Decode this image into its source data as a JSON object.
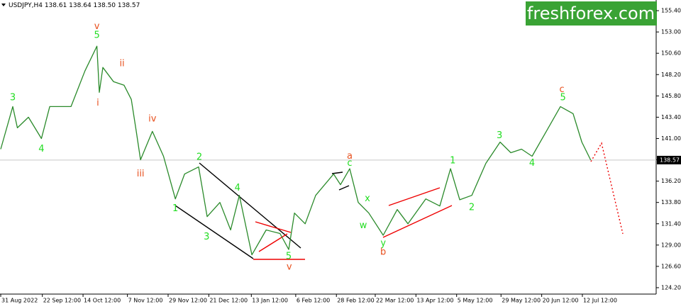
{
  "chart_data": {
    "type": "line",
    "title": "USDJPY,H4  138.61 138.64 138.50 138.57",
    "brand": "freshforex.com",
    "color": "#2a8a2a",
    "x": [
      0,
      6.5,
      9,
      15,
      22,
      26.5,
      38,
      45.5,
      52,
      53.3,
      55.2,
      61,
      66.7,
      70.6,
      73.3,
      75.6,
      82,
      88,
      94.4,
      99.4,
      107,
      111.6,
      118.5,
      124.3,
      129,
      135.8,
      143.5,
      151,
      155.7,
      158.8,
      164.6,
      170.3,
      180,
      183.7,
      188.7,
      193.3,
      199,
      206.8,
      214.4,
      220.2,
      229.8,
      237.4,
      243.2,
      248.2,
      254.7,
      262.3,
      270,
      275.8,
      281.6,
      287.3,
      295,
      302.6,
      309.5,
      314.2,
      319
    ],
    "values": [
      139.8,
      144.6,
      142.2,
      143.4,
      141.0,
      144.6,
      144.6,
      148.6,
      151.4,
      146.2,
      149.0,
      147.4,
      147.0,
      145.4,
      141.8,
      138.6,
      141.8,
      139.0,
      134.2,
      137.0,
      137.8,
      132.2,
      133.8,
      130.7,
      134.6,
      127.9,
      130.7,
      130.3,
      128.5,
      132.6,
      131.4,
      134.6,
      137.0,
      135.8,
      137.6,
      133.8,
      132.6,
      130.1,
      133.0,
      131.4,
      134.2,
      133.4,
      137.6,
      134.1,
      134.6,
      138.2,
      140.6,
      139.4,
      139.8,
      139.0,
      141.8,
      144.6,
      143.8,
      140.6,
      138.57
    ],
    "xlim": [
      -0.4,
      354.4
    ],
    "ylim": [
      123.08,
      156.6
    ],
    "xticks": [
      {
        "value": 0,
        "label": "31 Aug 2022"
      },
      {
        "value": 22.5,
        "label": "22 Sep 12:00"
      },
      {
        "value": 44.5,
        "label": "14 Oct 12:00"
      },
      {
        "value": 68.5,
        "label": "7 Nov 12:00"
      },
      {
        "value": 90.5,
        "label": "29 Nov 12:00"
      },
      {
        "value": 112.5,
        "label": "21 Dec 12:00"
      },
      {
        "value": 135.5,
        "label": "13 Jan 12:00"
      },
      {
        "value": 159.5,
        "label": "6 Feb 12:00"
      },
      {
        "value": 181.5,
        "label": "28 Feb 12:00"
      },
      {
        "value": 202.5,
        "label": "22 Mar 12:00"
      },
      {
        "value": 224.5,
        "label": "13 Apr 12:00"
      },
      {
        "value": 246.5,
        "label": "5 May 12:00"
      },
      {
        "value": 270.5,
        "label": "29 May 12:00"
      },
      {
        "value": 292.5,
        "label": "20 Jun 12:00"
      },
      {
        "value": 314.5,
        "label": "12 Jul 12:00"
      }
    ],
    "yticks": [
      {
        "value": 155.4,
        "label": "155.40"
      },
      {
        "value": 153,
        "label": "153.00"
      },
      {
        "value": 150.6,
        "label": "150.60"
      },
      {
        "value": 148.2,
        "label": "148.20"
      },
      {
        "value": 145.8,
        "label": "145.80"
      },
      {
        "value": 143.4,
        "label": "143.40"
      },
      {
        "value": 141,
        "label": "141.00"
      },
      {
        "value": 138.6,
        "label": "138.60"
      },
      {
        "value": 136.2,
        "label": "136.20"
      },
      {
        "value": 133.8,
        "label": "133.80"
      },
      {
        "value": 131.4,
        "label": "131.40"
      },
      {
        "value": 129,
        "label": "129.00"
      },
      {
        "value": 126.6,
        "label": "126.60"
      },
      {
        "value": 124.2,
        "label": "124.20"
      }
    ],
    "annotations": [
      {
        "text": "3",
        "color": "#22dd22",
        "x": 6.5,
        "y": 145.6
      },
      {
        "text": "4",
        "color": "#22dd22",
        "x": 22,
        "y": 139.8
      },
      {
        "text": "v",
        "color": "#e8501e",
        "x": 52,
        "y": 153.6
      },
      {
        "text": "5",
        "color": "#22dd22",
        "x": 52,
        "y": 152.6
      },
      {
        "text": "ii",
        "color": "#e8501e",
        "x": 65.6,
        "y": 149.4
      },
      {
        "text": "i",
        "color": "#e8501e",
        "x": 52.5,
        "y": 145.0
      },
      {
        "text": "iv",
        "color": "#e8501e",
        "x": 82,
        "y": 143.2
      },
      {
        "text": "iii",
        "color": "#e8501e",
        "x": 75.6,
        "y": 137.0
      },
      {
        "text": "2",
        "color": "#22dd22",
        "x": 107.4,
        "y": 138.9
      },
      {
        "text": "1",
        "color": "#22dd22",
        "x": 94.4,
        "y": 133.1
      },
      {
        "text": "3",
        "color": "#22dd22",
        "x": 111.3,
        "y": 129.9
      },
      {
        "text": "4",
        "color": "#22dd22",
        "x": 128,
        "y": 135.4
      },
      {
        "text": "5",
        "color": "#22dd22",
        "x": 155.7,
        "y": 127.7
      },
      {
        "text": "v",
        "color": "#e8501e",
        "x": 156,
        "y": 126.5
      },
      {
        "text": "a",
        "color": "#e8501e",
        "x": 188.7,
        "y": 139.0
      },
      {
        "text": "c",
        "color": "#22dd22",
        "x": 188.7,
        "y": 138.2
      },
      {
        "text": "x",
        "color": "#22dd22",
        "x": 198.3,
        "y": 134.2
      },
      {
        "text": "w",
        "color": "#22dd22",
        "x": 196,
        "y": 131.2
      },
      {
        "text": "y",
        "color": "#22dd22",
        "x": 206.8,
        "y": 129.2
      },
      {
        "text": "b",
        "color": "#e8501e",
        "x": 206.8,
        "y": 128.2
      },
      {
        "text": "1",
        "color": "#22dd22",
        "x": 244.4,
        "y": 138.5
      },
      {
        "text": "2",
        "color": "#22dd22",
        "x": 254.7,
        "y": 133.2
      },
      {
        "text": "3",
        "color": "#22dd22",
        "x": 269.7,
        "y": 141.3
      },
      {
        "text": "4",
        "color": "#22dd22",
        "x": 287.3,
        "y": 138.2
      },
      {
        "text": "c",
        "color": "#e8501e",
        "x": 303.4,
        "y": 146.5
      },
      {
        "text": "5",
        "color": "#22dd22",
        "x": 304,
        "y": 145.6
      }
    ]
  }
}
